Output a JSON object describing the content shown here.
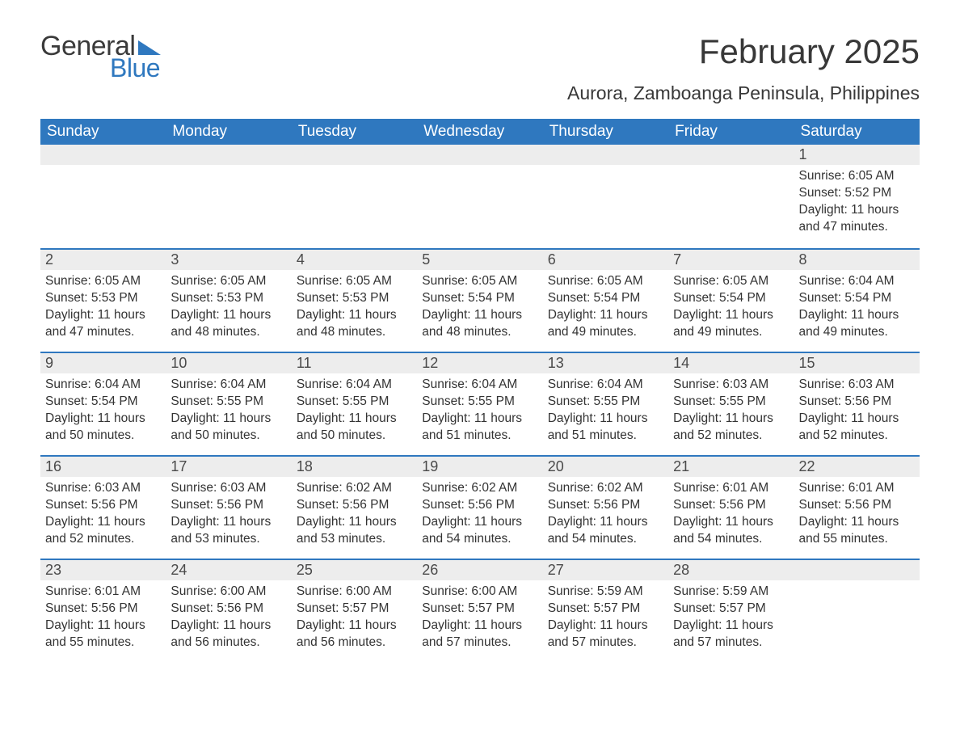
{
  "brand": {
    "word1": "General",
    "word2": "Blue",
    "flag_color": "#2f78bf"
  },
  "title": "February 2025",
  "location": "Aurora, Zamboanga Peninsula, Philippines",
  "colors": {
    "header_bg": "#2f78bf",
    "header_text": "#ffffff",
    "daynum_bg": "#ededed",
    "row_divider": "#2f78bf",
    "body_text": "#333333",
    "page_bg": "#ffffff"
  },
  "typography": {
    "title_fontsize": 42,
    "location_fontsize": 23,
    "header_fontsize": 19,
    "daynum_fontsize": 18,
    "body_fontsize": 15.5
  },
  "day_headers": [
    "Sunday",
    "Monday",
    "Tuesday",
    "Wednesday",
    "Thursday",
    "Friday",
    "Saturday"
  ],
  "weeks": [
    [
      null,
      null,
      null,
      null,
      null,
      null,
      {
        "n": "1",
        "sunrise": "Sunrise: 6:05 AM",
        "sunset": "Sunset: 5:52 PM",
        "daylight": "Daylight: 11 hours and 47 minutes."
      }
    ],
    [
      {
        "n": "2",
        "sunrise": "Sunrise: 6:05 AM",
        "sunset": "Sunset: 5:53 PM",
        "daylight": "Daylight: 11 hours and 47 minutes."
      },
      {
        "n": "3",
        "sunrise": "Sunrise: 6:05 AM",
        "sunset": "Sunset: 5:53 PM",
        "daylight": "Daylight: 11 hours and 48 minutes."
      },
      {
        "n": "4",
        "sunrise": "Sunrise: 6:05 AM",
        "sunset": "Sunset: 5:53 PM",
        "daylight": "Daylight: 11 hours and 48 minutes."
      },
      {
        "n": "5",
        "sunrise": "Sunrise: 6:05 AM",
        "sunset": "Sunset: 5:54 PM",
        "daylight": "Daylight: 11 hours and 48 minutes."
      },
      {
        "n": "6",
        "sunrise": "Sunrise: 6:05 AM",
        "sunset": "Sunset: 5:54 PM",
        "daylight": "Daylight: 11 hours and 49 minutes."
      },
      {
        "n": "7",
        "sunrise": "Sunrise: 6:05 AM",
        "sunset": "Sunset: 5:54 PM",
        "daylight": "Daylight: 11 hours and 49 minutes."
      },
      {
        "n": "8",
        "sunrise": "Sunrise: 6:04 AM",
        "sunset": "Sunset: 5:54 PM",
        "daylight": "Daylight: 11 hours and 49 minutes."
      }
    ],
    [
      {
        "n": "9",
        "sunrise": "Sunrise: 6:04 AM",
        "sunset": "Sunset: 5:54 PM",
        "daylight": "Daylight: 11 hours and 50 minutes."
      },
      {
        "n": "10",
        "sunrise": "Sunrise: 6:04 AM",
        "sunset": "Sunset: 5:55 PM",
        "daylight": "Daylight: 11 hours and 50 minutes."
      },
      {
        "n": "11",
        "sunrise": "Sunrise: 6:04 AM",
        "sunset": "Sunset: 5:55 PM",
        "daylight": "Daylight: 11 hours and 50 minutes."
      },
      {
        "n": "12",
        "sunrise": "Sunrise: 6:04 AM",
        "sunset": "Sunset: 5:55 PM",
        "daylight": "Daylight: 11 hours and 51 minutes."
      },
      {
        "n": "13",
        "sunrise": "Sunrise: 6:04 AM",
        "sunset": "Sunset: 5:55 PM",
        "daylight": "Daylight: 11 hours and 51 minutes."
      },
      {
        "n": "14",
        "sunrise": "Sunrise: 6:03 AM",
        "sunset": "Sunset: 5:55 PM",
        "daylight": "Daylight: 11 hours and 52 minutes."
      },
      {
        "n": "15",
        "sunrise": "Sunrise: 6:03 AM",
        "sunset": "Sunset: 5:56 PM",
        "daylight": "Daylight: 11 hours and 52 minutes."
      }
    ],
    [
      {
        "n": "16",
        "sunrise": "Sunrise: 6:03 AM",
        "sunset": "Sunset: 5:56 PM",
        "daylight": "Daylight: 11 hours and 52 minutes."
      },
      {
        "n": "17",
        "sunrise": "Sunrise: 6:03 AM",
        "sunset": "Sunset: 5:56 PM",
        "daylight": "Daylight: 11 hours and 53 minutes."
      },
      {
        "n": "18",
        "sunrise": "Sunrise: 6:02 AM",
        "sunset": "Sunset: 5:56 PM",
        "daylight": "Daylight: 11 hours and 53 minutes."
      },
      {
        "n": "19",
        "sunrise": "Sunrise: 6:02 AM",
        "sunset": "Sunset: 5:56 PM",
        "daylight": "Daylight: 11 hours and 54 minutes."
      },
      {
        "n": "20",
        "sunrise": "Sunrise: 6:02 AM",
        "sunset": "Sunset: 5:56 PM",
        "daylight": "Daylight: 11 hours and 54 minutes."
      },
      {
        "n": "21",
        "sunrise": "Sunrise: 6:01 AM",
        "sunset": "Sunset: 5:56 PM",
        "daylight": "Daylight: 11 hours and 54 minutes."
      },
      {
        "n": "22",
        "sunrise": "Sunrise: 6:01 AM",
        "sunset": "Sunset: 5:56 PM",
        "daylight": "Daylight: 11 hours and 55 minutes."
      }
    ],
    [
      {
        "n": "23",
        "sunrise": "Sunrise: 6:01 AM",
        "sunset": "Sunset: 5:56 PM",
        "daylight": "Daylight: 11 hours and 55 minutes."
      },
      {
        "n": "24",
        "sunrise": "Sunrise: 6:00 AM",
        "sunset": "Sunset: 5:56 PM",
        "daylight": "Daylight: 11 hours and 56 minutes."
      },
      {
        "n": "25",
        "sunrise": "Sunrise: 6:00 AM",
        "sunset": "Sunset: 5:57 PM",
        "daylight": "Daylight: 11 hours and 56 minutes."
      },
      {
        "n": "26",
        "sunrise": "Sunrise: 6:00 AM",
        "sunset": "Sunset: 5:57 PM",
        "daylight": "Daylight: 11 hours and 57 minutes."
      },
      {
        "n": "27",
        "sunrise": "Sunrise: 5:59 AM",
        "sunset": "Sunset: 5:57 PM",
        "daylight": "Daylight: 11 hours and 57 minutes."
      },
      {
        "n": "28",
        "sunrise": "Sunrise: 5:59 AM",
        "sunset": "Sunset: 5:57 PM",
        "daylight": "Daylight: 11 hours and 57 minutes."
      },
      null
    ]
  ]
}
